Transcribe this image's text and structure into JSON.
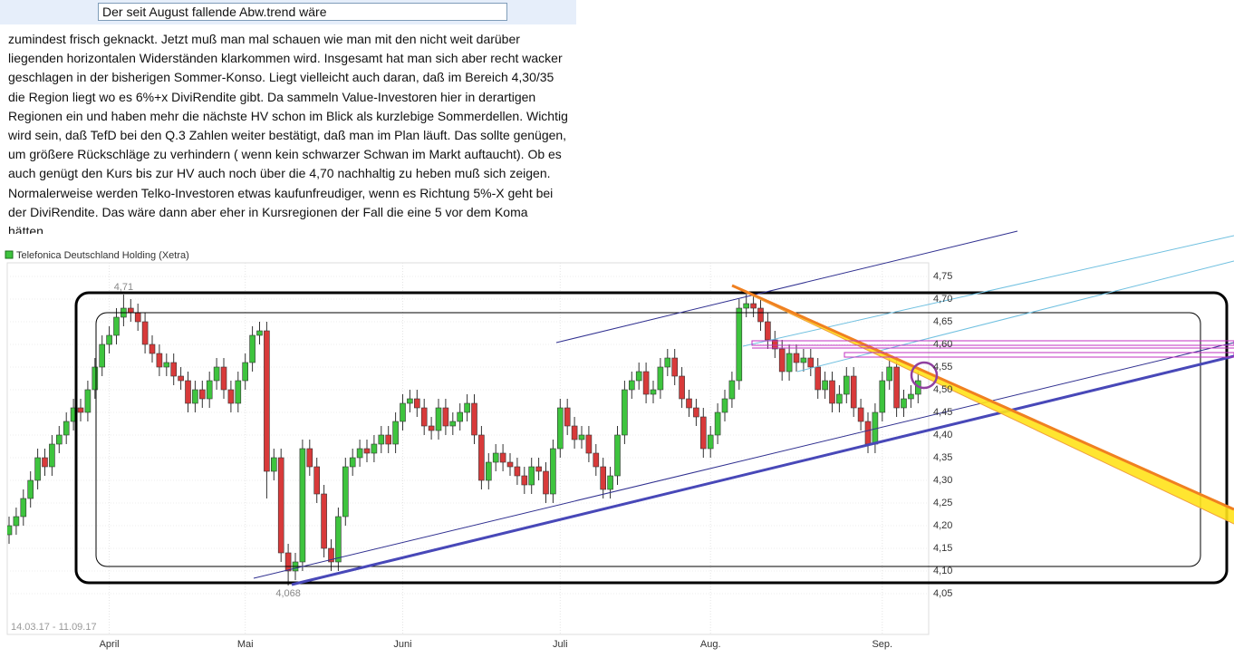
{
  "post": {
    "title": "Der seit August fallende Abw.trend wäre",
    "lines": [
      "zumindest frisch geknackt. Jetzt muß man mal schauen wie man mit den nicht weit darüber",
      "liegenden horizontalen Widerständen klarkommen wird. Insgesamt hat man sich aber recht wacker",
      "geschlagen in der bisherigen Sommer-Konso. Liegt vielleicht auch daran, daß im Bereich 4,30/35",
      "die Region liegt wo es 6%+x DiviRendite gibt. Da sammeln Value-Investoren hier in derartigen",
      "Regionen ein und haben mehr die nächste HV schon im Blick als kurzlebige Sommerdellen. Wichtig",
      "wird sein, daß TefD bei den Q.3 Zahlen weiter bestätigt, daß man im Plan läuft. Das sollte genügen,",
      "um größere Rückschläge zu verhindern ( wenn kein schwarzer Schwan im Markt auftaucht). Ob es",
      "auch genügt den Kurs bis zur HV auch noch über die 4,70 nachhaltig zu heben muß sich zeigen.",
      "Normalerweise werden Telko-Investoren etwas kaufunfreudiger, wenn es Richtung 5%-X geht bei",
      "der DiviRendite. Das wäre dann aber eher in Kursregionen der Fall die eine 5 vor dem Koma",
      "hätten"
    ]
  },
  "chart_data": {
    "type": "candlestick",
    "title": "Telefonica Deutschland Holding (Xetra)",
    "date_range": "14.03.17 - 11.09.17",
    "up_color": "#3ec43e",
    "down_color": "#d83a3a",
    "grid": true,
    "ylim": [
      3.96,
      4.78
    ],
    "yticks": [
      {
        "value": 4.05,
        "label": "4,05"
      },
      {
        "value": 4.1,
        "label": "4,10"
      },
      {
        "value": 4.15,
        "label": "4,15"
      },
      {
        "value": 4.2,
        "label": "4,20"
      },
      {
        "value": 4.25,
        "label": "4,25"
      },
      {
        "value": 4.3,
        "label": "4,30"
      },
      {
        "value": 4.35,
        "label": "4,35"
      },
      {
        "value": 4.4,
        "label": "4,40"
      },
      {
        "value": 4.45,
        "label": "4,45"
      },
      {
        "value": 4.5,
        "label": "4,50"
      },
      {
        "value": 4.55,
        "label": "4,55"
      },
      {
        "value": 4.6,
        "label": "4,60"
      },
      {
        "value": 4.65,
        "label": "4,65"
      },
      {
        "value": 4.7,
        "label": "4,70"
      },
      {
        "value": 4.75,
        "label": "4,75"
      }
    ],
    "xticks": [
      {
        "value": 14,
        "label": "April"
      },
      {
        "value": 33,
        "label": "Mai"
      },
      {
        "value": 55,
        "label": "Juni"
      },
      {
        "value": 77,
        "label": "Juli"
      },
      {
        "value": 98,
        "label": "Aug."
      },
      {
        "value": 122,
        "label": "Sep."
      }
    ],
    "annotations": [
      {
        "index": 16,
        "value": 4.71,
        "label": "4,71"
      },
      {
        "index": 39,
        "value": 4.068,
        "label": "4,068"
      }
    ],
    "open": [
      4.18,
      4.2,
      4.22,
      4.26,
      4.3,
      4.35,
      4.33,
      4.38,
      4.4,
      4.43,
      4.46,
      4.45,
      4.5,
      4.55,
      4.6,
      4.62,
      4.66,
      4.68,
      4.67,
      4.65,
      4.6,
      4.58,
      4.55,
      4.56,
      4.53,
      4.52,
      4.47,
      4.5,
      4.48,
      4.52,
      4.55,
      4.5,
      4.47,
      4.52,
      4.56,
      4.62,
      4.63,
      4.32,
      4.35,
      4.14,
      4.1,
      4.12,
      4.37,
      4.33,
      4.27,
      4.15,
      4.12,
      4.22,
      4.33,
      4.35,
      4.37,
      4.36,
      4.38,
      4.4,
      4.38,
      4.43,
      4.47,
      4.48,
      4.46,
      4.42,
      4.41,
      4.46,
      4.42,
      4.43,
      4.45,
      4.47,
      4.4,
      4.3,
      4.34,
      4.36,
      4.34,
      4.33,
      4.31,
      4.29,
      4.33,
      4.32,
      4.27,
      4.37,
      4.46,
      4.42,
      4.39,
      4.4,
      4.36,
      4.33,
      4.28,
      4.31,
      4.4,
      4.5,
      4.52,
      4.54,
      4.49,
      4.5,
      4.55,
      4.57,
      4.53,
      4.48,
      4.46,
      4.44,
      4.37,
      4.4,
      4.45,
      4.48,
      4.52,
      4.68,
      4.69,
      4.68,
      4.65,
      4.61,
      4.59,
      4.54,
      4.58,
      4.56,
      4.57,
      4.55,
      4.5,
      4.52,
      4.47,
      4.49,
      4.53,
      4.46,
      4.43,
      4.38,
      4.45,
      4.52,
      4.55,
      4.46,
      4.48,
      4.49
    ],
    "high": [
      4.22,
      4.24,
      4.28,
      4.32,
      4.37,
      4.37,
      4.4,
      4.42,
      4.45,
      4.48,
      4.48,
      4.52,
      4.57,
      4.62,
      4.64,
      4.68,
      4.71,
      4.7,
      4.69,
      4.67,
      4.62,
      4.6,
      4.58,
      4.58,
      4.55,
      4.54,
      4.52,
      4.52,
      4.54,
      4.57,
      4.57,
      4.52,
      4.54,
      4.58,
      4.64,
      4.65,
      4.65,
      4.37,
      4.37,
      4.16,
      4.14,
      4.39,
      4.39,
      4.35,
      4.29,
      4.17,
      4.24,
      4.35,
      4.37,
      4.39,
      4.39,
      4.4,
      4.42,
      4.42,
      4.45,
      4.49,
      4.5,
      4.5,
      4.48,
      4.44,
      4.48,
      4.48,
      4.45,
      4.47,
      4.49,
      4.49,
      4.42,
      4.36,
      4.38,
      4.38,
      4.36,
      4.35,
      4.33,
      4.35,
      4.35,
      4.34,
      4.39,
      4.48,
      4.48,
      4.44,
      4.42,
      4.42,
      4.38,
      4.35,
      4.33,
      4.42,
      4.52,
      4.54,
      4.56,
      4.56,
      4.52,
      4.57,
      4.59,
      4.59,
      4.55,
      4.5,
      4.48,
      4.46,
      4.42,
      4.47,
      4.5,
      4.54,
      4.7,
      4.71,
      4.71,
      4.7,
      4.67,
      4.63,
      4.61,
      4.6,
      4.6,
      4.59,
      4.59,
      4.57,
      4.54,
      4.54,
      4.51,
      4.55,
      4.55,
      4.48,
      4.45,
      4.47,
      4.54,
      4.57,
      4.57,
      4.5,
      4.51,
      4.54
    ],
    "low": [
      4.16,
      4.18,
      4.2,
      4.24,
      4.28,
      4.31,
      4.31,
      4.36,
      4.38,
      4.41,
      4.43,
      4.43,
      4.48,
      4.53,
      4.58,
      4.6,
      4.64,
      4.65,
      4.63,
      4.58,
      4.56,
      4.53,
      4.53,
      4.51,
      4.5,
      4.45,
      4.45,
      4.46,
      4.46,
      4.5,
      4.48,
      4.45,
      4.45,
      4.5,
      4.54,
      4.6,
      4.26,
      4.3,
      4.12,
      4.068,
      4.08,
      4.1,
      4.31,
      4.25,
      4.13,
      4.1,
      4.1,
      4.2,
      4.31,
      4.33,
      4.34,
      4.34,
      4.36,
      4.36,
      4.36,
      4.41,
      4.45,
      4.44,
      4.4,
      4.39,
      4.39,
      4.4,
      4.4,
      4.41,
      4.43,
      4.38,
      4.28,
      4.28,
      4.32,
      4.32,
      4.31,
      4.29,
      4.27,
      4.27,
      4.3,
      4.25,
      4.25,
      4.35,
      4.4,
      4.37,
      4.37,
      4.34,
      4.31,
      4.26,
      4.26,
      4.29,
      4.38,
      4.48,
      4.5,
      4.47,
      4.47,
      4.48,
      4.53,
      4.51,
      4.46,
      4.44,
      4.42,
      4.35,
      4.35,
      4.38,
      4.43,
      4.46,
      4.5,
      4.66,
      4.66,
      4.63,
      4.59,
      4.57,
      4.52,
      4.52,
      4.54,
      4.54,
      4.53,
      4.48,
      4.48,
      4.45,
      4.45,
      4.47,
      4.44,
      4.41,
      4.36,
      4.36,
      4.43,
      4.5,
      4.44,
      4.44,
      4.46,
      4.47
    ],
    "close": [
      4.2,
      4.22,
      4.26,
      4.3,
      4.35,
      4.33,
      4.38,
      4.4,
      4.43,
      4.46,
      4.45,
      4.5,
      4.55,
      4.6,
      4.62,
      4.66,
      4.68,
      4.67,
      4.65,
      4.6,
      4.58,
      4.55,
      4.56,
      4.53,
      4.52,
      4.47,
      4.5,
      4.48,
      4.52,
      4.55,
      4.5,
      4.47,
      4.52,
      4.56,
      4.62,
      4.63,
      4.32,
      4.35,
      4.14,
      4.1,
      4.12,
      4.37,
      4.33,
      4.27,
      4.15,
      4.12,
      4.22,
      4.33,
      4.35,
      4.37,
      4.36,
      4.38,
      4.4,
      4.38,
      4.43,
      4.47,
      4.48,
      4.46,
      4.42,
      4.41,
      4.46,
      4.42,
      4.43,
      4.45,
      4.47,
      4.4,
      4.3,
      4.34,
      4.36,
      4.34,
      4.33,
      4.31,
      4.29,
      4.33,
      4.32,
      4.27,
      4.37,
      4.46,
      4.42,
      4.39,
      4.4,
      4.36,
      4.33,
      4.28,
      4.31,
      4.4,
      4.5,
      4.52,
      4.54,
      4.49,
      4.5,
      4.55,
      4.57,
      4.53,
      4.48,
      4.46,
      4.44,
      4.37,
      4.4,
      4.45,
      4.48,
      4.52,
      4.68,
      4.69,
      4.68,
      4.65,
      4.61,
      4.59,
      4.54,
      4.58,
      4.56,
      4.57,
      4.55,
      4.5,
      4.52,
      4.47,
      4.49,
      4.53,
      4.46,
      4.43,
      4.38,
      4.45,
      4.52,
      4.55,
      4.46,
      4.48,
      4.49,
      4.52
    ]
  }
}
